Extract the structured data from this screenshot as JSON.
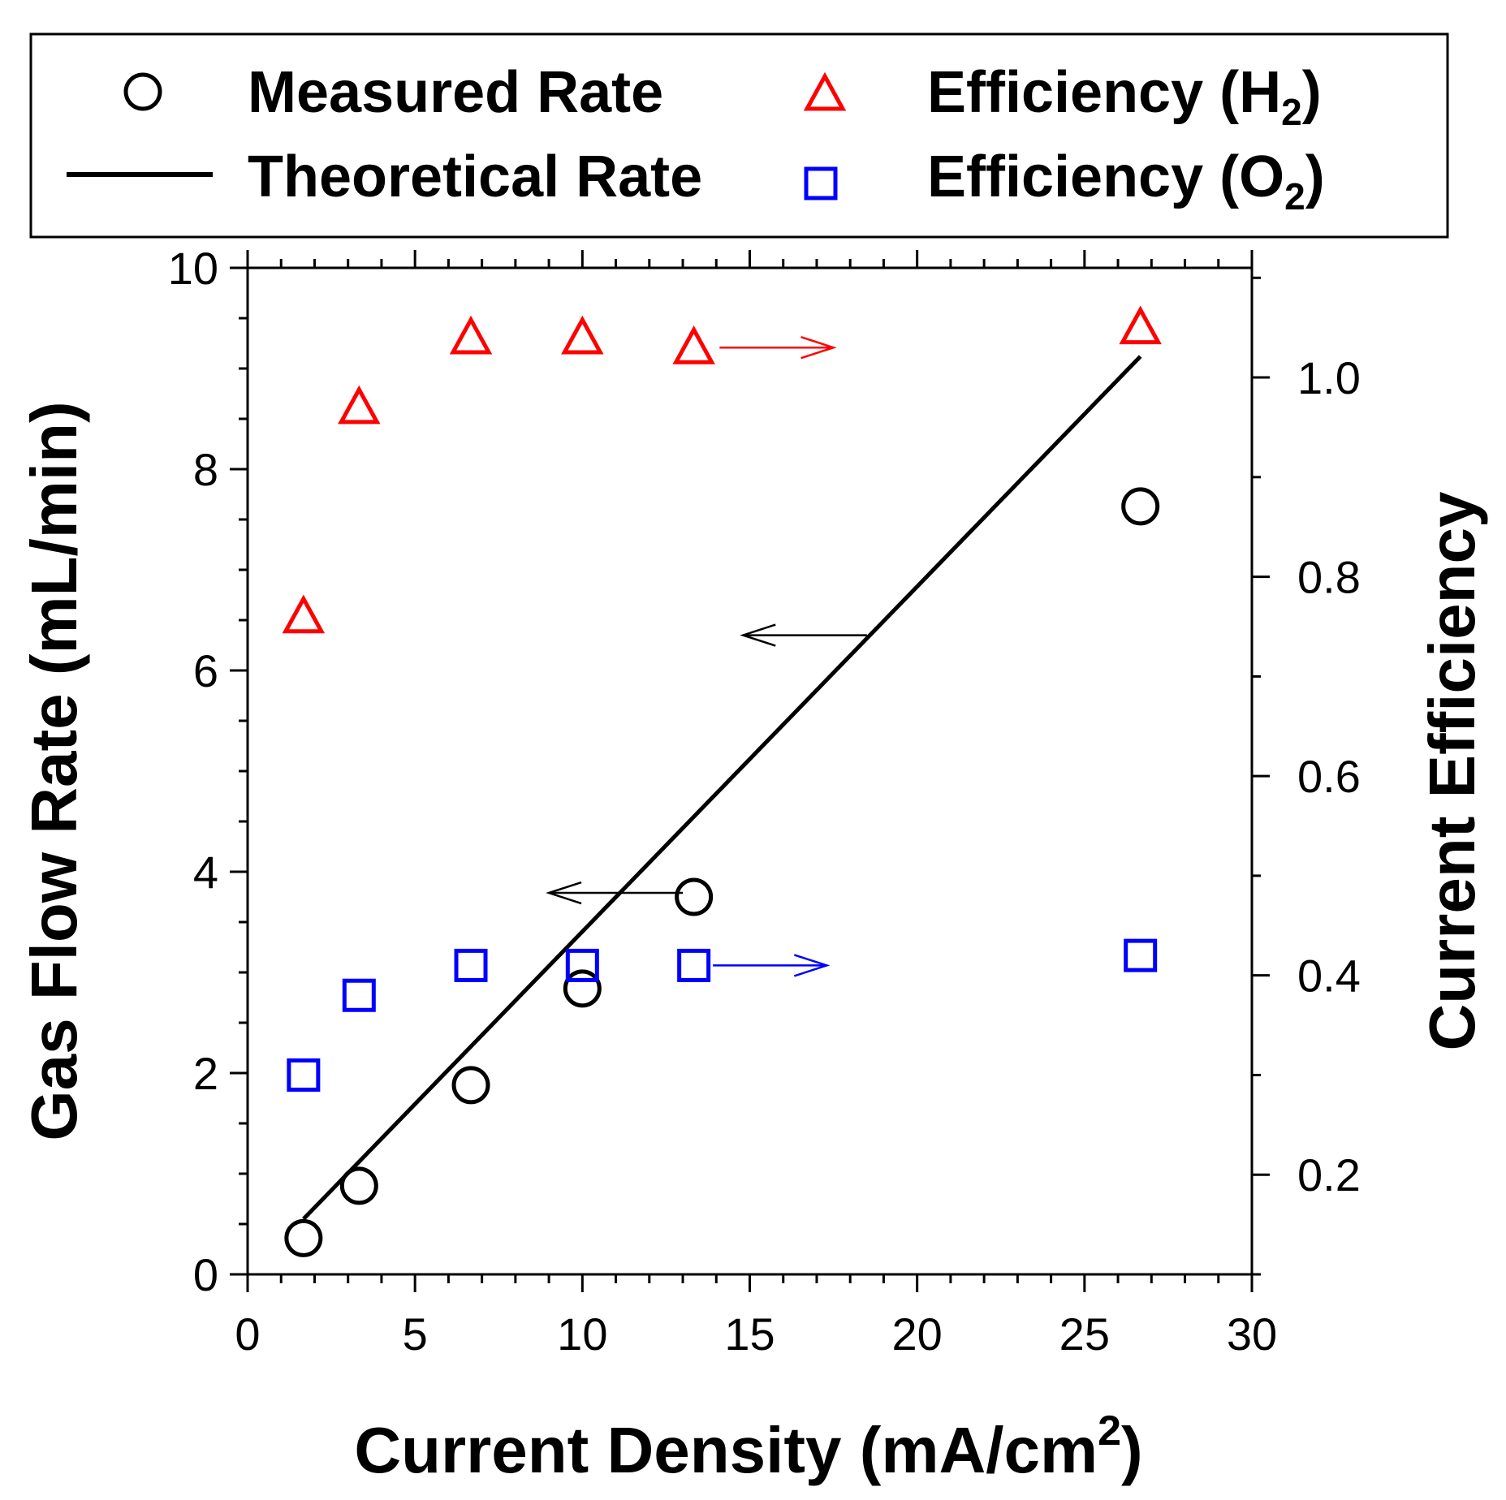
{
  "chart_data": {
    "type": "scatter",
    "x_axis": {
      "label": "Current Density (mA/cm",
      "label_sup": "2",
      "label_close": ")",
      "min": 0,
      "max": 30,
      "ticks": [
        0,
        5,
        10,
        15,
        20,
        25,
        30
      ],
      "tick_labels": [
        "0",
        "5",
        "10",
        "15",
        "20",
        "25",
        "30"
      ]
    },
    "y_left": {
      "label": "Gas Flow Rate (mL/min)",
      "min": 0,
      "max": 10,
      "ticks": [
        0,
        2,
        4,
        6,
        8,
        10
      ],
      "tick_labels": [
        "0",
        "2",
        "4",
        "6",
        "8",
        "10"
      ]
    },
    "y_right": {
      "label": "Current Efficiency",
      "min": 0.1,
      "max": 1.11,
      "ticks": [
        0.2,
        0.4,
        0.6,
        0.8,
        1.0
      ],
      "tick_labels": [
        "0.2",
        "0.4",
        "0.6",
        "0.8",
        "1.0"
      ]
    },
    "series": [
      {
        "name": "Measured Rate",
        "marker": "circle",
        "axis": "left",
        "color": "#000000",
        "x": [
          1.67,
          3.33,
          6.67,
          10,
          13.33,
          26.67
        ],
        "y": [
          0.36,
          0.88,
          1.88,
          2.84,
          3.75,
          7.63
        ]
      },
      {
        "name": "Theoretical Rate",
        "marker": "line",
        "axis": "left",
        "color": "#000000",
        "x": [
          1.67,
          26.67
        ],
        "y": [
          0.55,
          9.12
        ]
      },
      {
        "name": "Efficiency (H",
        "name_sub": "2",
        "name_close": ")",
        "marker": "triangle",
        "axis": "right",
        "color": "#ff0000",
        "x": [
          1.67,
          3.33,
          6.67,
          10,
          13.33,
          26.67
        ],
        "y": [
          0.76,
          0.97,
          1.04,
          1.04,
          1.03,
          1.05
        ]
      },
      {
        "name": "Efficiency (O",
        "name_sub": "2",
        "name_close": ")",
        "marker": "square",
        "axis": "right",
        "color": "#0000ff",
        "x": [
          1.67,
          3.33,
          6.67,
          10,
          13.33,
          26.67
        ],
        "y": [
          0.3,
          0.38,
          0.41,
          0.41,
          0.41,
          0.42
        ]
      }
    ],
    "annotations": [
      {
        "name": "arrow-h2-right",
        "color": "#ff0000",
        "axis": "right",
        "from": [
          14.1,
          1.03
        ],
        "to": [
          17.5,
          1.03
        ]
      },
      {
        "name": "arrow-o2-right",
        "color": "#0000ff",
        "axis": "right",
        "from": [
          13.9,
          0.41
        ],
        "to": [
          17.3,
          0.41
        ]
      },
      {
        "name": "arrow-measured-left",
        "color": "#000000",
        "axis": "left",
        "from": [
          13.0,
          3.79
        ],
        "to": [
          9.0,
          3.79
        ]
      },
      {
        "name": "arrow-theoretical-left",
        "color": "#000000",
        "axis": "left",
        "from": [
          18.5,
          6.35
        ],
        "to": [
          14.8,
          6.35
        ]
      }
    ],
    "legend": {
      "position": "top"
    }
  }
}
